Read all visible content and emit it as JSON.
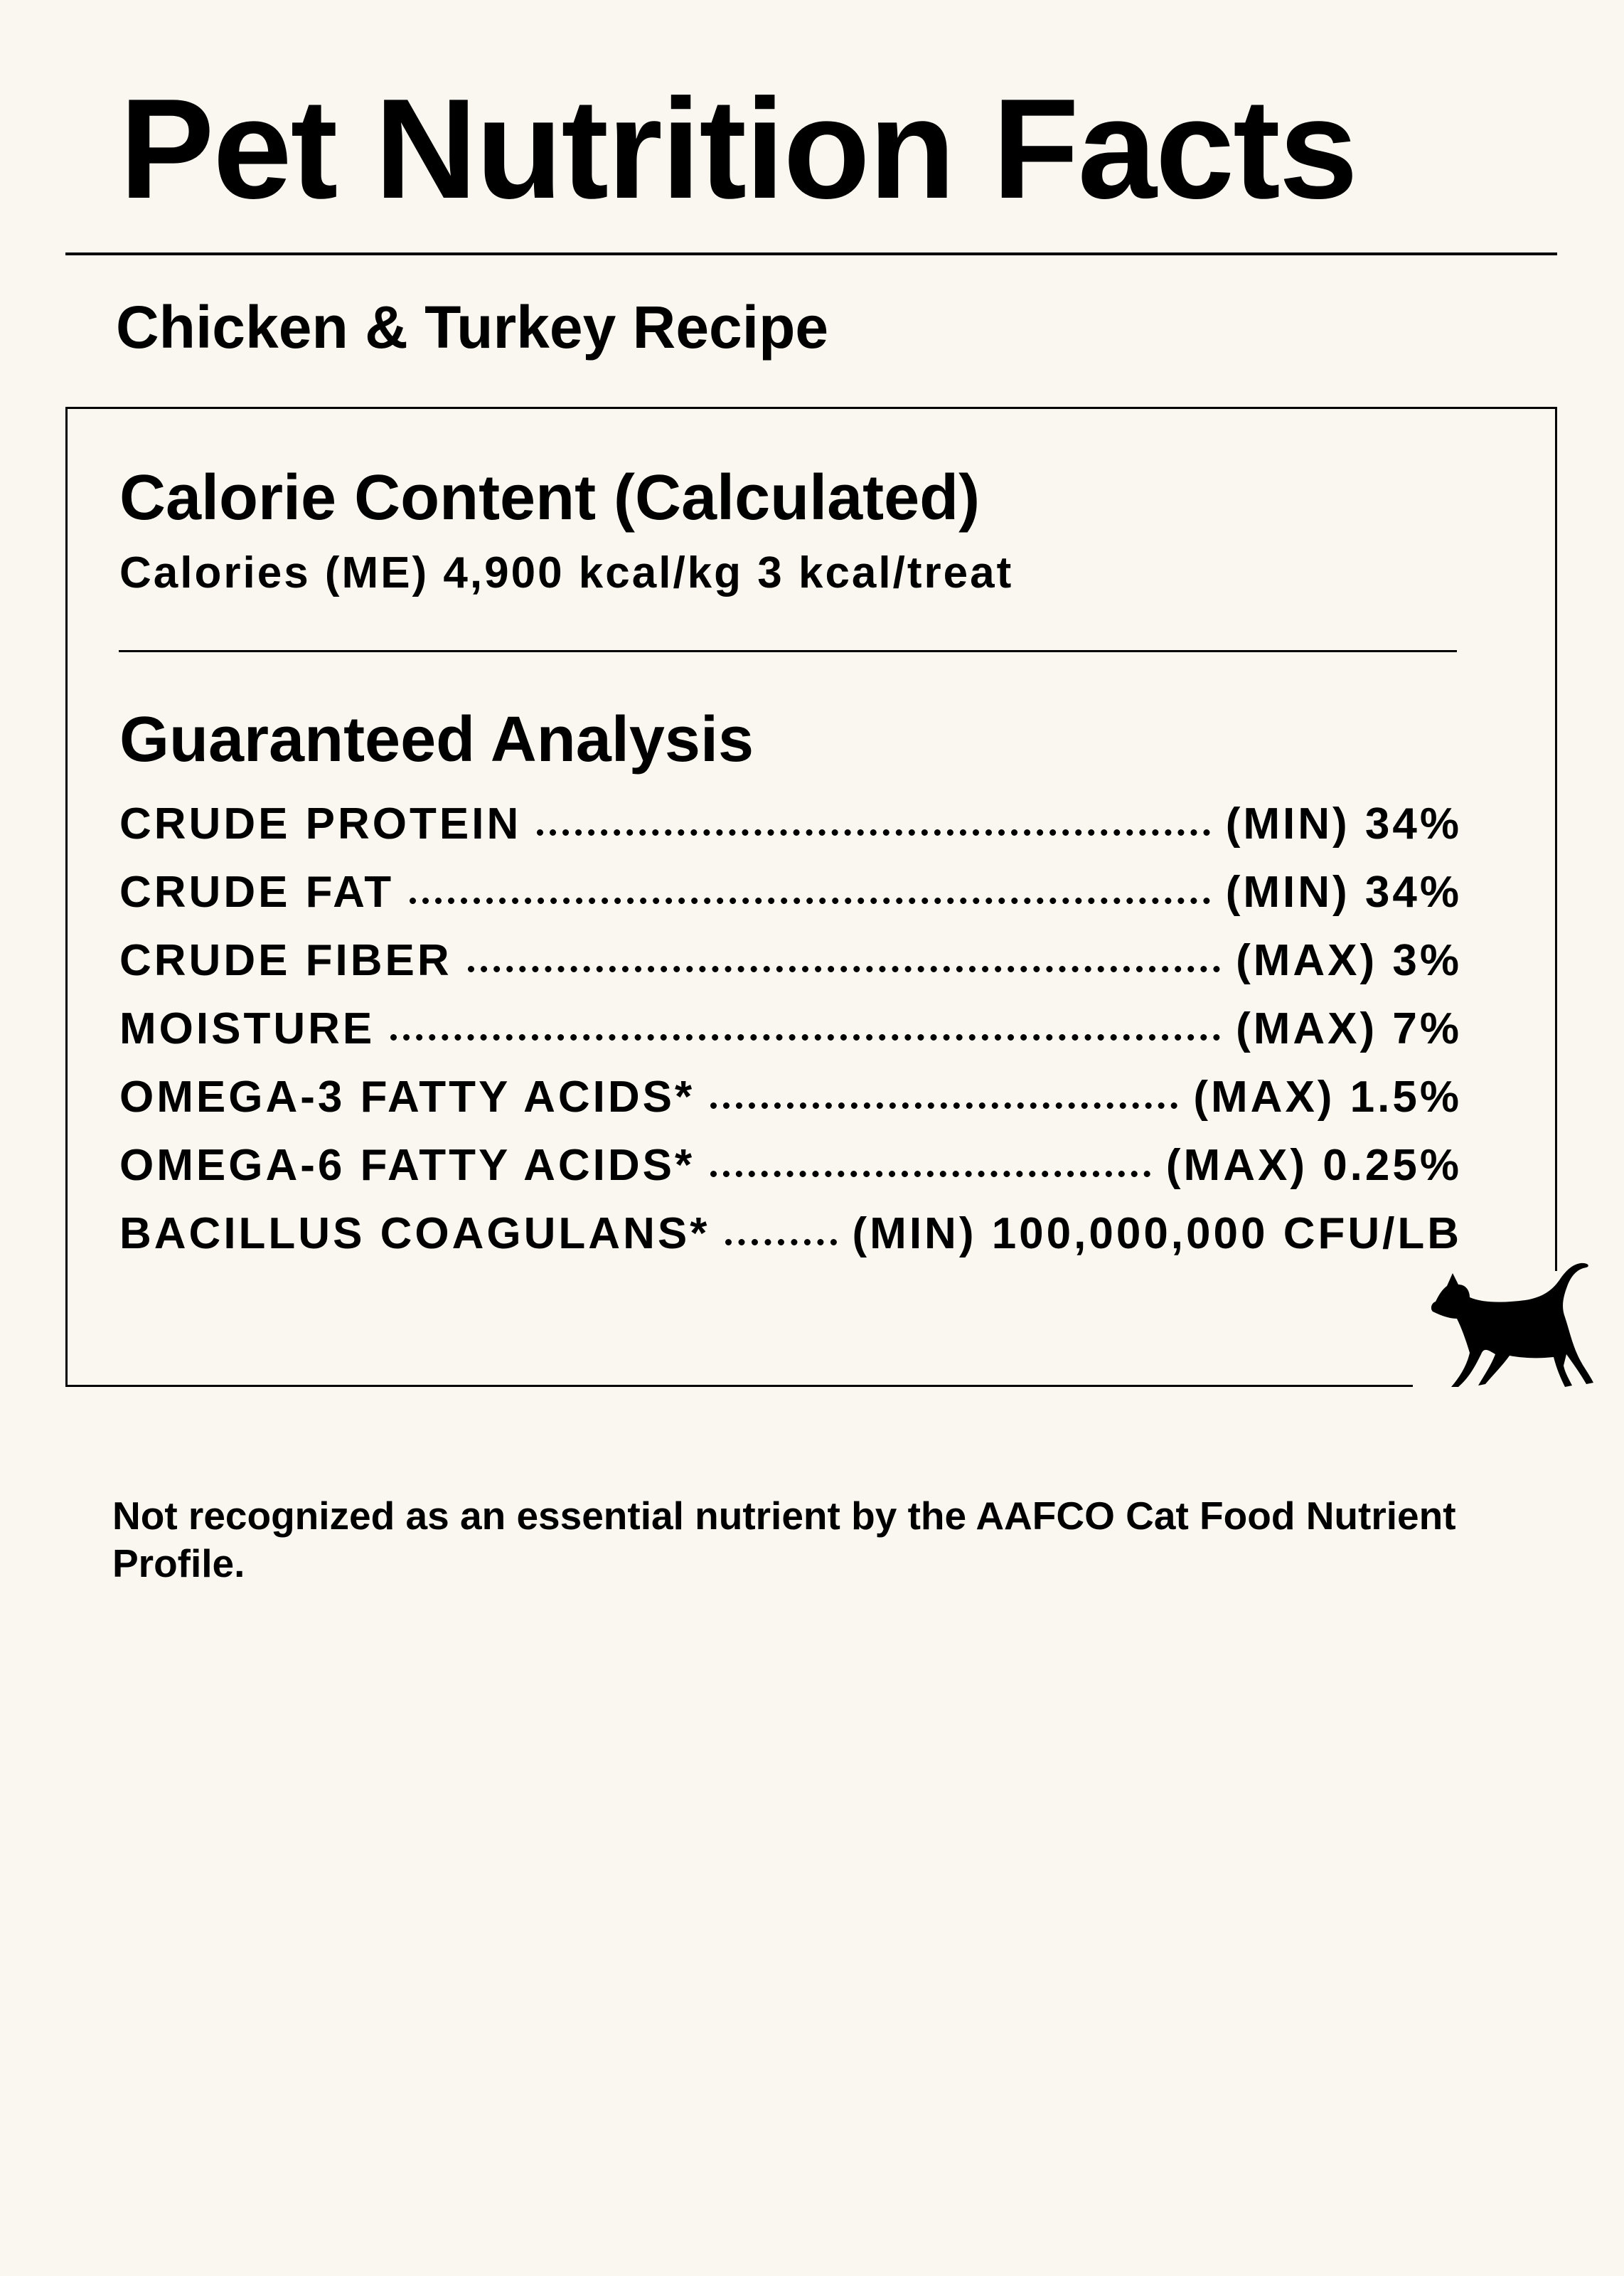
{
  "header": {
    "title": "Pet Nutrition Facts",
    "subtitle": "Chicken & Turkey Recipe"
  },
  "calories": {
    "heading": "Calorie Content (Calculated)",
    "line": "Calories (ME) 4,900 kcal/kg 3 kcal/treat"
  },
  "analysis": {
    "heading": "Guaranteed Analysis",
    "rows": [
      {
        "label": "CRUDE PROTEIN",
        "amount": "(MIN) 34%"
      },
      {
        "label": "CRUDE FAT",
        "amount": "(MIN) 34%"
      },
      {
        "label": "CRUDE FIBER",
        "amount": "(MAX) 3%"
      },
      {
        "label": "MOISTURE",
        "amount": "(MAX) 7%"
      },
      {
        "label": "OMEGA-3 FATTY ACIDS*",
        "amount": "(MAX) 1.5%"
      },
      {
        "label": "OMEGA-6 FATTY ACIDS*",
        "amount": "(MAX) 0.25%"
      },
      {
        "label": "BACILLUS COAGULANS*",
        "amount": "(MIN) 100,000,000 CFU/LB"
      }
    ]
  },
  "footnote": "Not recognized as an essential nutrient by the AAFCO Cat Food Nutrient Profile."
}
